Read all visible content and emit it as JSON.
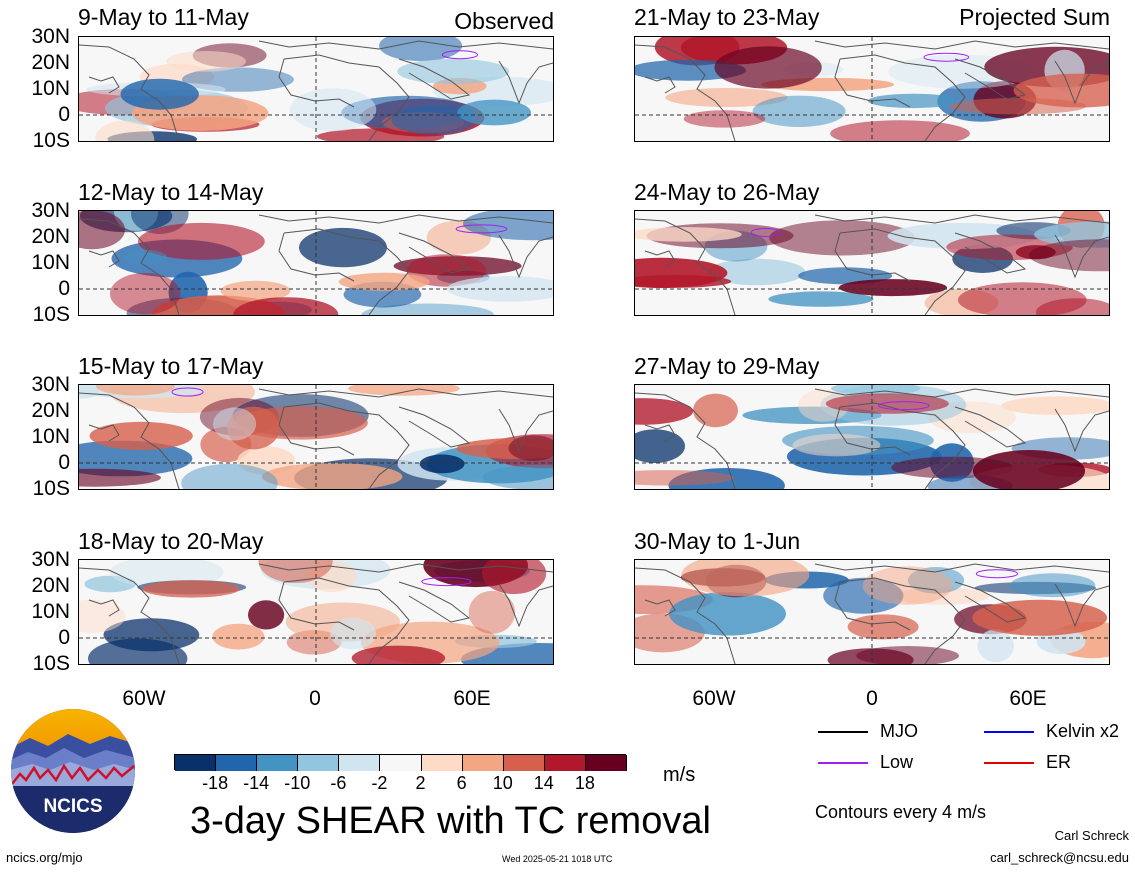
{
  "header": {
    "observed_label": "Observed",
    "projected_label": "Projected Sum"
  },
  "panels": {
    "left": [
      {
        "title": "9-May to 11-May"
      },
      {
        "title": "12-May to 14-May"
      },
      {
        "title": "15-May to 17-May"
      },
      {
        "title": "18-May to 20-May"
      }
    ],
    "right": [
      {
        "title": "21-May to 23-May"
      },
      {
        "title": "24-May to 26-May"
      },
      {
        "title": "27-May to 29-May"
      },
      {
        "title": "30-May to 1-Jun"
      }
    ]
  },
  "axes": {
    "lat_labels": [
      "30N",
      "20N",
      "10N",
      "0",
      "10S"
    ],
    "lon_labels": [
      "60W",
      "0",
      "60E"
    ]
  },
  "colorbar": {
    "unit": "m/s",
    "tick_labels": [
      "-18",
      "-14",
      "-10",
      "-6",
      "-2",
      "2",
      "6",
      "10",
      "14",
      "18"
    ],
    "colors": [
      "#08306b",
      "#2166ac",
      "#4393c3",
      "#92c5de",
      "#d1e5f0",
      "#f7f7f7",
      "#fddbc7",
      "#f4a582",
      "#d6604d",
      "#b2182b",
      "#67001f"
    ]
  },
  "legend": {
    "mjo": {
      "label": "MJO",
      "color": "#000000"
    },
    "kelvin": {
      "label": "Kelvin x2",
      "color": "#0000ff"
    },
    "low": {
      "label": "Low",
      "color": "#a020f0"
    },
    "er": {
      "label": "ER",
      "color": "#e00000"
    },
    "contour_note": "Contours every 4 m/s"
  },
  "footer": {
    "main_title": "3-day SHEAR with TC removal",
    "logo_text": "NCICS",
    "url": "ncics.org/mjo",
    "timestamp": "Wed 2025-05-21 1018 UTC",
    "author": "Carl Schreck",
    "email": "carl_schreck@ncsu.edu"
  }
}
